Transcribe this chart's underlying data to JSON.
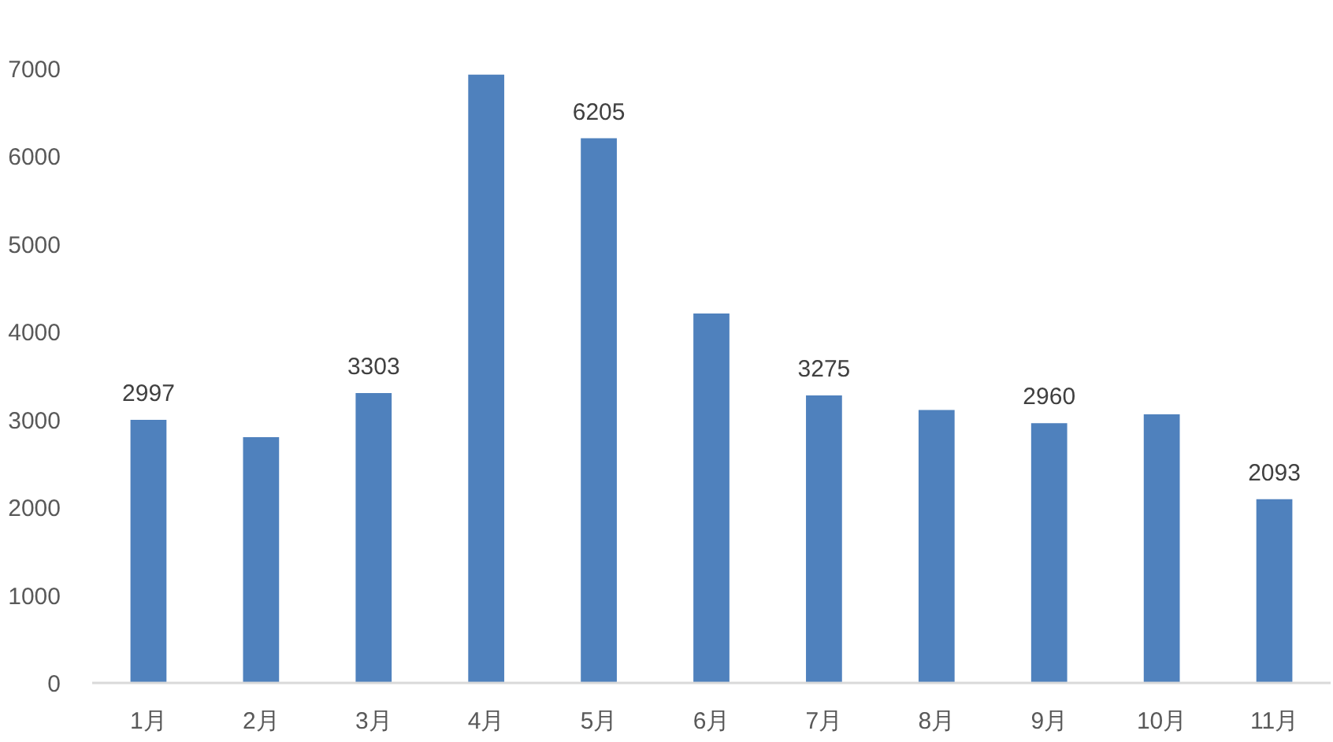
{
  "chart_data": {
    "type": "bar",
    "categories": [
      "1月",
      "2月",
      "3月",
      "4月",
      "5月",
      "6月",
      "7月",
      "8月",
      "9月",
      "10月",
      "11月"
    ],
    "values": [
      2997,
      2800,
      3303,
      6930,
      6205,
      4210,
      3275,
      3110,
      2960,
      3060,
      2093
    ],
    "value_labels": [
      "2997",
      null,
      "3303",
      null,
      "6205",
      null,
      "3275",
      null,
      "2960",
      null,
      "2093"
    ],
    "color": "#4f81bd",
    "ylim": [
      0,
      7000
    ],
    "yticks": [
      0,
      1000,
      2000,
      3000,
      4000,
      5000,
      6000,
      7000
    ]
  }
}
